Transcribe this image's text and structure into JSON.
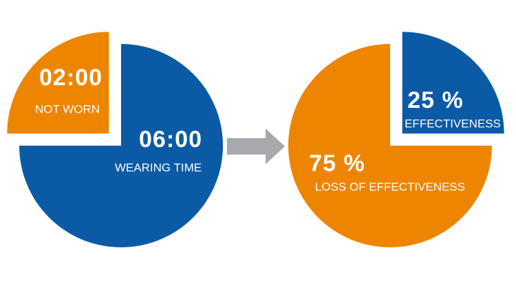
{
  "chart_data": [
    {
      "type": "pie",
      "categories": [
        "WEARING TIME",
        "NOT WORN"
      ],
      "values": [
        6,
        2
      ],
      "value_labels": [
        "06:00",
        "02:00"
      ],
      "colors": [
        "#0b5aa6",
        "#ee8500"
      ]
    },
    {
      "type": "pie",
      "categories": [
        "EFFECTIVENESS",
        "LOSS OF EFFECTIVENESS"
      ],
      "values": [
        25,
        75
      ],
      "value_labels": [
        "25 %",
        "75 %"
      ],
      "colors": [
        "#0b5aa6",
        "#ee8500"
      ]
    }
  ]
}
